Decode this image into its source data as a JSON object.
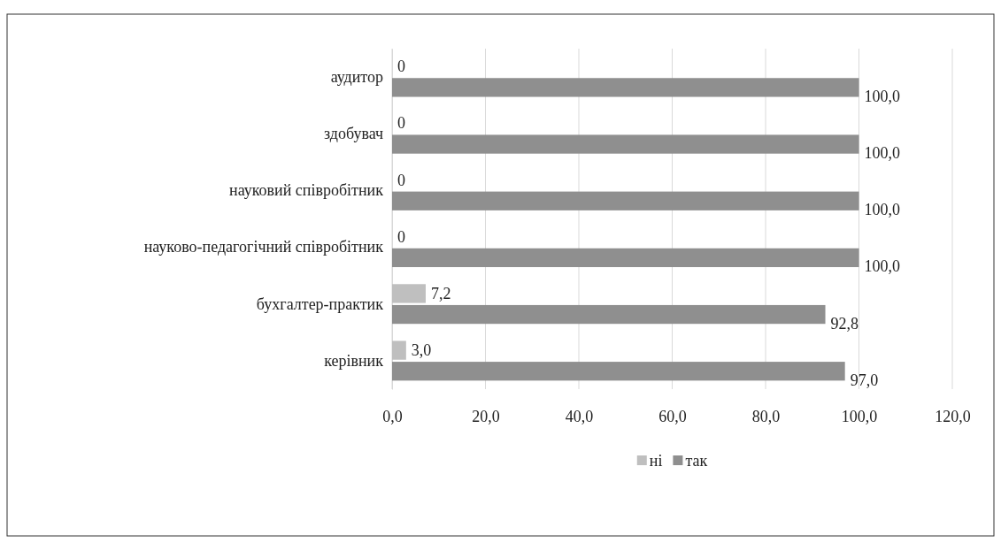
{
  "chart_data": {
    "type": "bar",
    "orientation": "horizontal",
    "categories": [
      "аудитор",
      "здобувач",
      "науковий співробітник ",
      "науково-педагогічний співробітник",
      "бухгалтер-практик",
      "керівник"
    ],
    "series": [
      {
        "name": "ні",
        "color": "#bfbfbf",
        "values": [
          0,
          0,
          0,
          0,
          7.2,
          3.0
        ],
        "value_labels": [
          "0",
          "0",
          "0",
          "0",
          "7,2",
          "3,0"
        ]
      },
      {
        "name": "так",
        "color": "#8f8f8f",
        "values": [
          100,
          100,
          100,
          100,
          92.8,
          97.0
        ],
        "value_labels": [
          "100,0",
          "100,0",
          "100,0",
          "100,0",
          "92,8",
          "97,0"
        ]
      }
    ],
    "xlim": [
      0,
      120
    ],
    "xticks": [
      {
        "value": 0,
        "label": "0,0"
      },
      {
        "value": 20,
        "label": "20,0"
      },
      {
        "value": 40,
        "label": "40,0"
      },
      {
        "value": 60,
        "label": "60,0"
      },
      {
        "value": 80,
        "label": "80,0"
      },
      {
        "value": 100,
        "label": "100,0"
      },
      {
        "value": 120,
        "label": "120,0"
      }
    ],
    "grid": "x",
    "legend": "bottom"
  }
}
